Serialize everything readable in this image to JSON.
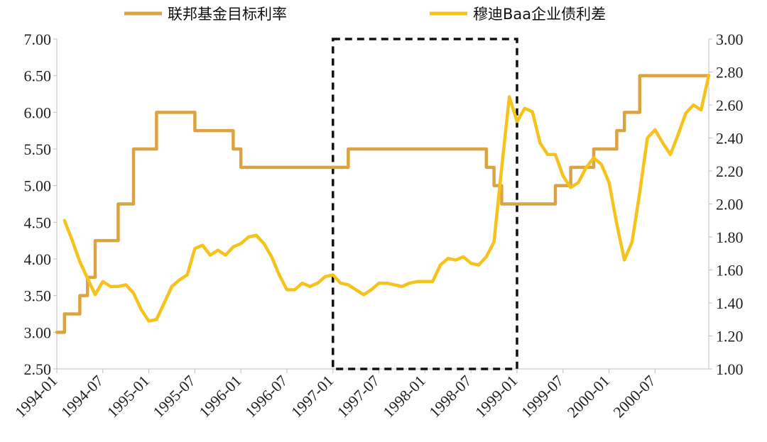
{
  "chart_data": {
    "type": "line",
    "legend": {
      "position": "top"
    },
    "x_tick_labels": [
      "1994-01",
      "1994-07",
      "1995-01",
      "1995-07",
      "1996-01",
      "1996-07",
      "1997-01",
      "1997-07",
      "1998-01",
      "1998-07",
      "1999-01",
      "1999-07",
      "2000-01",
      "2000-07"
    ],
    "y_left": {
      "ylim": [
        2.5,
        7.0
      ],
      "ticks": [
        "2.50",
        "3.00",
        "3.50",
        "4.00",
        "4.50",
        "5.00",
        "5.50",
        "6.00",
        "6.50",
        "7.00"
      ]
    },
    "y_right": {
      "ylim": [
        1.0,
        3.0
      ],
      "ticks": [
        "1.00",
        "1.20",
        "1.40",
        "1.60",
        "1.80",
        "2.00",
        "2.20",
        "2.40",
        "2.60",
        "2.80",
        "3.00"
      ]
    },
    "highlight_region": {
      "x_start": "1997-01",
      "x_end": "1999-01"
    },
    "grid": false,
    "series": [
      {
        "name": "联邦基金目标利率",
        "axis": "left",
        "color": "#D9A441",
        "step": true,
        "points": [
          [
            "1994-01",
            3.0
          ],
          [
            "1994-02",
            3.25
          ],
          [
            "1994-03",
            3.25
          ],
          [
            "1994-04",
            3.5
          ],
          [
            "1994-05",
            3.75
          ],
          [
            "1994-06",
            4.25
          ],
          [
            "1994-07",
            4.25
          ],
          [
            "1994-08",
            4.25
          ],
          [
            "1994-09",
            4.75
          ],
          [
            "1994-10",
            4.75
          ],
          [
            "1994-11",
            5.5
          ],
          [
            "1994-12",
            5.5
          ],
          [
            "1995-01",
            5.5
          ],
          [
            "1995-02",
            6.0
          ],
          [
            "1995-03",
            6.0
          ],
          [
            "1995-04",
            6.0
          ],
          [
            "1995-05",
            6.0
          ],
          [
            "1995-06",
            6.0
          ],
          [
            "1995-07",
            5.75
          ],
          [
            "1995-08",
            5.75
          ],
          [
            "1995-09",
            5.75
          ],
          [
            "1995-10",
            5.75
          ],
          [
            "1995-11",
            5.75
          ],
          [
            "1995-12",
            5.5
          ],
          [
            "1996-01",
            5.25
          ],
          [
            "1996-02",
            5.25
          ],
          [
            "1996-03",
            5.25
          ],
          [
            "1996-04",
            5.25
          ],
          [
            "1996-05",
            5.25
          ],
          [
            "1996-06",
            5.25
          ],
          [
            "1996-07",
            5.25
          ],
          [
            "1996-08",
            5.25
          ],
          [
            "1996-09",
            5.25
          ],
          [
            "1996-10",
            5.25
          ],
          [
            "1996-11",
            5.25
          ],
          [
            "1996-12",
            5.25
          ],
          [
            "1997-01",
            5.25
          ],
          [
            "1997-02",
            5.25
          ],
          [
            "1997-03",
            5.5
          ],
          [
            "1997-04",
            5.5
          ],
          [
            "1997-05",
            5.5
          ],
          [
            "1997-06",
            5.5
          ],
          [
            "1997-07",
            5.5
          ],
          [
            "1997-08",
            5.5
          ],
          [
            "1997-09",
            5.5
          ],
          [
            "1997-10",
            5.5
          ],
          [
            "1997-11",
            5.5
          ],
          [
            "1997-12",
            5.5
          ],
          [
            "1998-01",
            5.5
          ],
          [
            "1998-02",
            5.5
          ],
          [
            "1998-03",
            5.5
          ],
          [
            "1998-04",
            5.5
          ],
          [
            "1998-05",
            5.5
          ],
          [
            "1998-06",
            5.5
          ],
          [
            "1998-07",
            5.5
          ],
          [
            "1998-08",
            5.5
          ],
          [
            "1998-09",
            5.25
          ],
          [
            "1998-10",
            5.0
          ],
          [
            "1998-11",
            4.75
          ],
          [
            "1998-12",
            4.75
          ],
          [
            "1999-01",
            4.75
          ],
          [
            "1999-02",
            4.75
          ],
          [
            "1999-03",
            4.75
          ],
          [
            "1999-04",
            4.75
          ],
          [
            "1999-05",
            4.75
          ],
          [
            "1999-06",
            5.0
          ],
          [
            "1999-07",
            5.0
          ],
          [
            "1999-08",
            5.25
          ],
          [
            "1999-09",
            5.25
          ],
          [
            "1999-10",
            5.25
          ],
          [
            "1999-11",
            5.5
          ],
          [
            "1999-12",
            5.5
          ],
          [
            "2000-01",
            5.5
          ],
          [
            "2000-02",
            5.75
          ],
          [
            "2000-03",
            6.0
          ],
          [
            "2000-04",
            6.0
          ],
          [
            "2000-05",
            6.5
          ],
          [
            "2000-06",
            6.5
          ],
          [
            "2000-07",
            6.5
          ],
          [
            "2000-08",
            6.5
          ],
          [
            "2000-09",
            6.5
          ],
          [
            "2000-10",
            6.5
          ],
          [
            "2000-11",
            6.5
          ],
          [
            "2000-12",
            6.5
          ]
        ]
      },
      {
        "name": "穆迪Baa企业债利差",
        "axis": "right",
        "color": "#F5C31C",
        "step": false,
        "points": [
          [
            "1994-02",
            1.9
          ],
          [
            "1994-03",
            1.78
          ],
          [
            "1994-04",
            1.65
          ],
          [
            "1994-05",
            1.55
          ],
          [
            "1994-06",
            1.45
          ],
          [
            "1994-07",
            1.53
          ],
          [
            "1994-08",
            1.5
          ],
          [
            "1994-09",
            1.5
          ],
          [
            "1994-10",
            1.51
          ],
          [
            "1994-11",
            1.46
          ],
          [
            "1994-12",
            1.36
          ],
          [
            "1995-01",
            1.29
          ],
          [
            "1995-02",
            1.3
          ],
          [
            "1995-03",
            1.4
          ],
          [
            "1995-04",
            1.5
          ],
          [
            "1995-05",
            1.54
          ],
          [
            "1995-06",
            1.57
          ],
          [
            "1995-07",
            1.73
          ],
          [
            "1995-08",
            1.75
          ],
          [
            "1995-09",
            1.69
          ],
          [
            "1995-10",
            1.72
          ],
          [
            "1995-11",
            1.69
          ],
          [
            "1995-12",
            1.74
          ],
          [
            "1996-01",
            1.76
          ],
          [
            "1996-02",
            1.8
          ],
          [
            "1996-03",
            1.81
          ],
          [
            "1996-04",
            1.76
          ],
          [
            "1996-05",
            1.68
          ],
          [
            "1996-06",
            1.57
          ],
          [
            "1996-07",
            1.48
          ],
          [
            "1996-08",
            1.48
          ],
          [
            "1996-09",
            1.52
          ],
          [
            "1996-10",
            1.5
          ],
          [
            "1996-11",
            1.52
          ],
          [
            "1996-12",
            1.56
          ],
          [
            "1997-01",
            1.57
          ],
          [
            "1997-02",
            1.52
          ],
          [
            "1997-03",
            1.51
          ],
          [
            "1997-04",
            1.48
          ],
          [
            "1997-05",
            1.45
          ],
          [
            "1997-06",
            1.48
          ],
          [
            "1997-07",
            1.52
          ],
          [
            "1997-08",
            1.52
          ],
          [
            "1997-09",
            1.51
          ],
          [
            "1997-10",
            1.5
          ],
          [
            "1997-11",
            1.52
          ],
          [
            "1997-12",
            1.53
          ],
          [
            "1998-01",
            1.53
          ],
          [
            "1998-02",
            1.53
          ],
          [
            "1998-03",
            1.63
          ],
          [
            "1998-04",
            1.67
          ],
          [
            "1998-05",
            1.66
          ],
          [
            "1998-06",
            1.68
          ],
          [
            "1998-07",
            1.64
          ],
          [
            "1998-08",
            1.63
          ],
          [
            "1998-09",
            1.68
          ],
          [
            "1998-10",
            1.77
          ],
          [
            "1998-11",
            2.22
          ],
          [
            "1998-12",
            2.65
          ],
          [
            "1999-01",
            2.5
          ],
          [
            "1999-02",
            2.58
          ],
          [
            "1999-03",
            2.56
          ],
          [
            "1999-04",
            2.37
          ],
          [
            "1999-05",
            2.3
          ],
          [
            "1999-06",
            2.3
          ],
          [
            "1999-07",
            2.17
          ],
          [
            "1999-08",
            2.1
          ],
          [
            "1999-09",
            2.13
          ],
          [
            "1999-10",
            2.22
          ],
          [
            "1999-11",
            2.28
          ],
          [
            "1999-12",
            2.24
          ],
          [
            "2000-01",
            2.13
          ],
          [
            "2000-02",
            1.88
          ],
          [
            "2000-03",
            1.66
          ],
          [
            "2000-04",
            1.77
          ],
          [
            "2000-05",
            2.07
          ],
          [
            "2000-06",
            2.4
          ],
          [
            "2000-07",
            2.45
          ],
          [
            "2000-08",
            2.37
          ],
          [
            "2000-09",
            2.3
          ],
          [
            "2000-10",
            2.42
          ],
          [
            "2000-11",
            2.55
          ],
          [
            "2000-12",
            2.6
          ],
          [
            "2001-01",
            2.57
          ],
          [
            "2001-02",
            2.78
          ]
        ]
      }
    ]
  }
}
